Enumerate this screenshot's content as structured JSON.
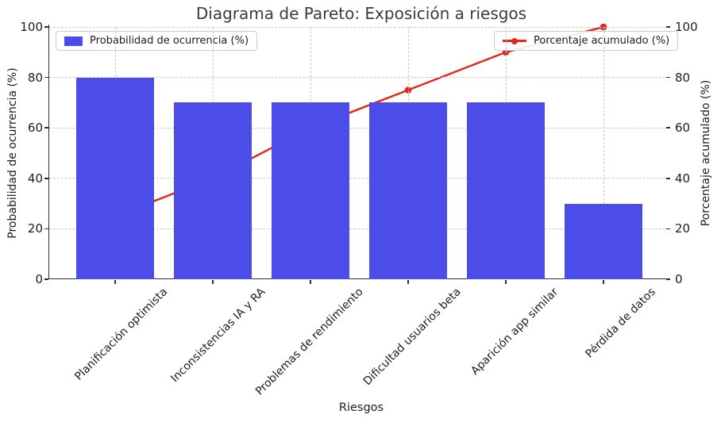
{
  "title": "Diagrama de Pareto: Exposición a riesgos",
  "chart_data": {
    "type": "bar",
    "subtype": "pareto (bar + cumulative line)",
    "title": "Diagrama de Pareto: Exposición a riesgos",
    "categories": [
      "Planificación optimista",
      "Inconsistencias IA y RA",
      "Problemas de rendimiento",
      "Dificultad usuarios beta",
      "Aparición app similar",
      "Pérdida de datos"
    ],
    "series": [
      {
        "name": "Probabilidad de ocurrencia (%)",
        "type": "bar",
        "axis": "left",
        "color": "#4c4ce8",
        "values": [
          80,
          70,
          70,
          70,
          70,
          30
        ]
      },
      {
        "name": "Porcentaje acumulado (%)",
        "type": "line",
        "axis": "right",
        "color": "#e0281e",
        "values": [
          25,
          40,
          60,
          75,
          90,
          100
        ]
      }
    ],
    "xlabel": "Riesgos",
    "ylabel_left": "Probabilidad de ocurrencia (%)",
    "ylabel_right": "Porcentaje acumulado (%)",
    "ylim": [
      0,
      100
    ],
    "yticks": [
      0,
      20,
      40,
      60,
      80,
      100
    ],
    "grid": true,
    "legend_positions": {
      "bar": "upper left",
      "line": "upper right"
    }
  },
  "colors": {
    "bar": "#4c4ce8",
    "line": "#e0281e",
    "grid": "#c8c8c8",
    "axis": "#2e2e2e",
    "title": "#3a3a3a",
    "text": "#1c1c1c"
  }
}
